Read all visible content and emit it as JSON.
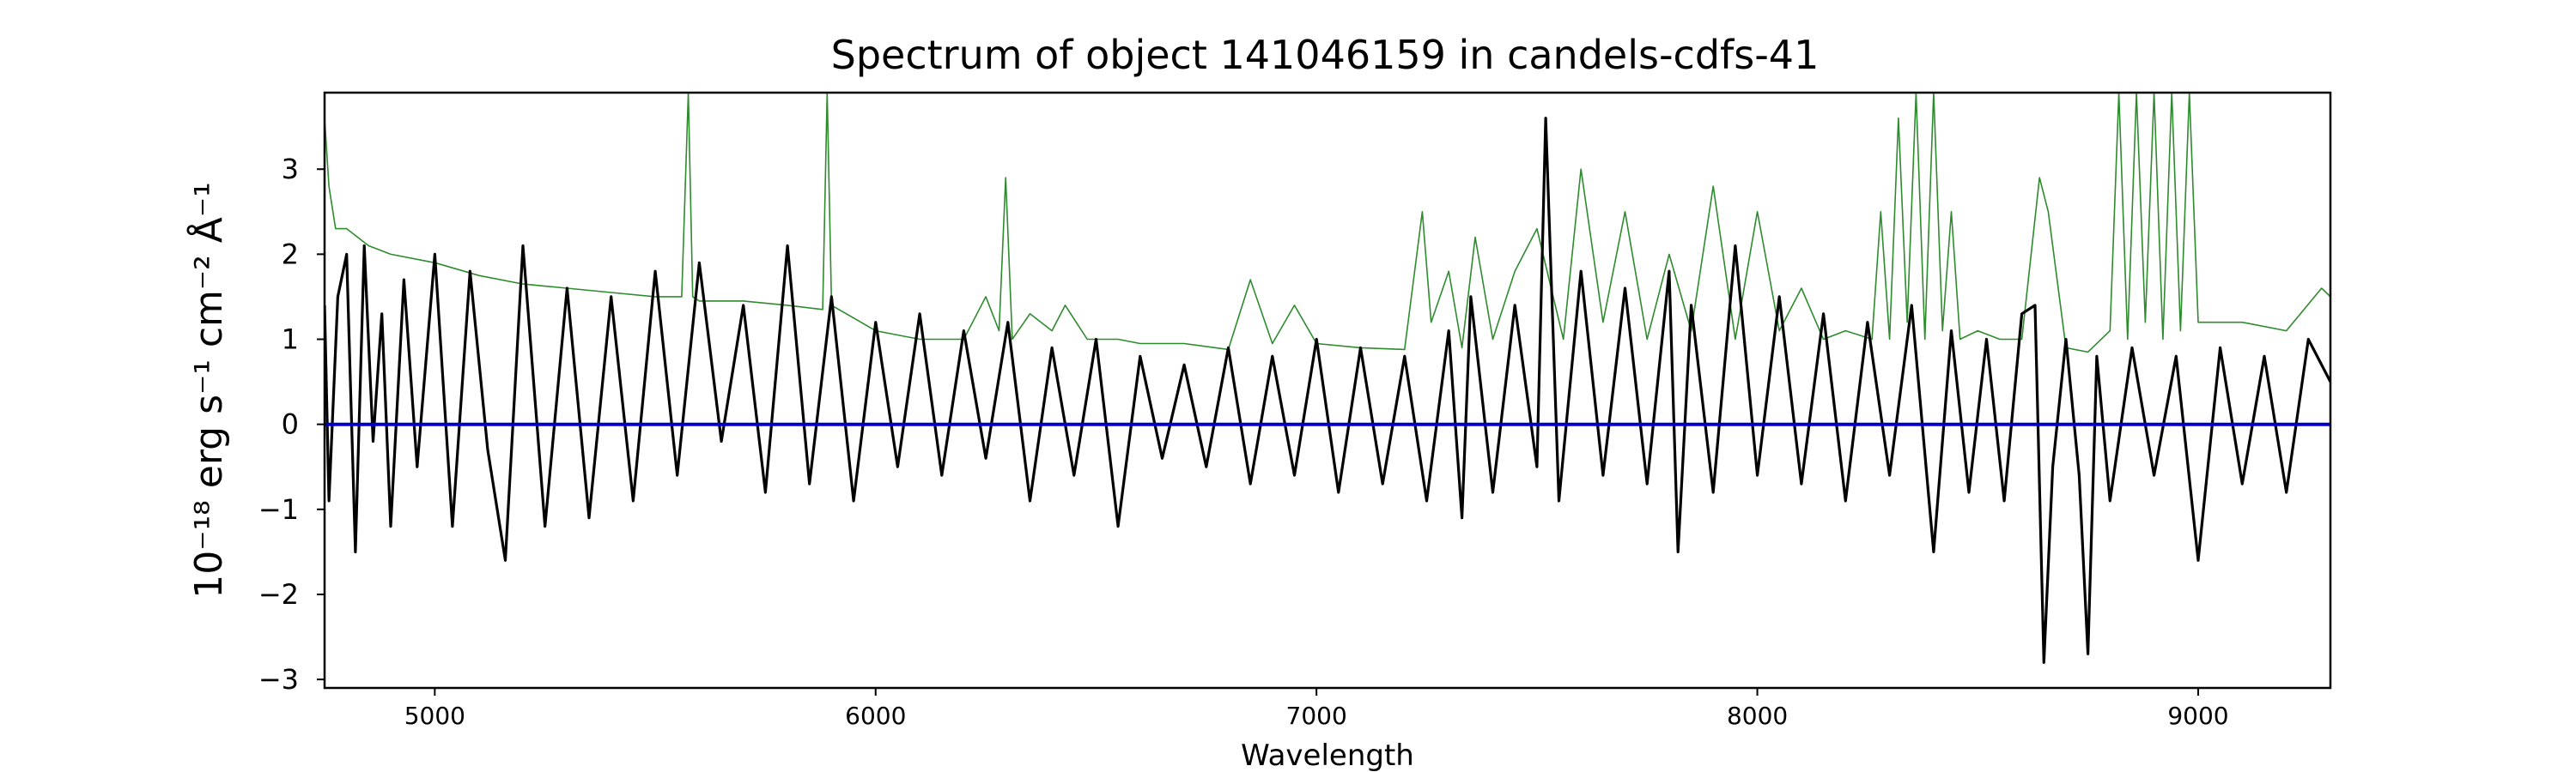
{
  "chart_data": {
    "type": "line",
    "title": "Spectrum of object 141046159 in candels-cdfs-41",
    "xlabel": "Wavelength",
    "ylabel": "10⁻¹⁸ erg s⁻¹ cm⁻² Å⁻¹",
    "xlim": [
      4750,
      9300
    ],
    "ylim": [
      -3.1,
      3.9
    ],
    "xticks": [
      5000,
      6000,
      7000,
      8000,
      9000
    ],
    "xtick_labels": [
      "5000",
      "6000",
      "7000",
      "8000",
      "9000"
    ],
    "yticks": [
      -3,
      -2,
      -1,
      0,
      1,
      2,
      3
    ],
    "ytick_labels": [
      "−3",
      "−2",
      "−1",
      "0",
      "1",
      "2",
      "3"
    ],
    "grid": false,
    "series": [
      {
        "color": "#2e8b2e",
        "x": [
          4750,
          4760,
          4775,
          4800,
          4850,
          4900,
          5000,
          5100,
          5200,
          5300,
          5400,
          5500,
          5560,
          5575,
          5585,
          5600,
          5700,
          5800,
          5880,
          5890,
          5900,
          5950,
          6000,
          6100,
          6200,
          6250,
          6280,
          6295,
          6310,
          6350,
          6400,
          6430,
          6480,
          6500,
          6550,
          6600,
          6700,
          6800,
          6850,
          6900,
          6950,
          7000,
          7100,
          7200,
          7240,
          7260,
          7300,
          7330,
          7360,
          7400,
          7450,
          7500,
          7560,
          7600,
          7650,
          7700,
          7750,
          7800,
          7850,
          7900,
          7950,
          8000,
          8050,
          8100,
          8150,
          8200,
          8260,
          8280,
          8300,
          8320,
          8340,
          8360,
          8380,
          8400,
          8420,
          8440,
          8460,
          8500,
          8550,
          8600,
          8640,
          8660,
          8700,
          8750,
          8800,
          8820,
          8840,
          8860,
          8880,
          8900,
          8920,
          8940,
          8960,
          8980,
          9000,
          9100,
          9200,
          9280,
          9300
        ],
        "values": [
          3.6,
          2.8,
          2.3,
          2.3,
          2.1,
          2.0,
          1.9,
          1.75,
          1.65,
          1.6,
          1.55,
          1.5,
          1.5,
          3.9,
          1.5,
          1.45,
          1.45,
          1.4,
          1.35,
          3.9,
          1.4,
          1.25,
          1.1,
          1.0,
          1.0,
          1.5,
          1.1,
          2.9,
          1.0,
          1.3,
          1.1,
          1.4,
          1.0,
          1.0,
          1.0,
          0.95,
          0.95,
          0.88,
          1.7,
          0.95,
          1.4,
          0.95,
          0.9,
          0.88,
          2.5,
          1.2,
          1.8,
          0.9,
          2.2,
          1.0,
          1.8,
          2.3,
          1.0,
          3.0,
          1.2,
          2.5,
          1.0,
          2.0,
          1.1,
          2.8,
          1.0,
          2.5,
          1.1,
          1.6,
          1.0,
          1.1,
          1.0,
          2.5,
          1.0,
          3.6,
          1.2,
          3.9,
          1.0,
          3.9,
          1.1,
          2.5,
          1.0,
          1.1,
          1.0,
          1.0,
          2.9,
          2.5,
          0.9,
          0.85,
          1.1,
          3.9,
          1.0,
          3.9,
          1.2,
          3.9,
          1.0,
          3.9,
          1.1,
          3.9,
          1.2,
          1.2,
          1.1,
          1.6,
          1.5
        ]
      },
      {
        "color": "#000000",
        "x": [
          4750,
          4760,
          4780,
          4800,
          4820,
          4840,
          4860,
          4880,
          4900,
          4930,
          4960,
          5000,
          5040,
          5080,
          5120,
          5160,
          5200,
          5250,
          5300,
          5350,
          5400,
          5450,
          5500,
          5550,
          5600,
          5650,
          5700,
          5750,
          5800,
          5850,
          5900,
          5950,
          6000,
          6050,
          6100,
          6150,
          6200,
          6250,
          6300,
          6350,
          6400,
          6450,
          6500,
          6550,
          6600,
          6650,
          6700,
          6750,
          6800,
          6850,
          6900,
          6950,
          7000,
          7050,
          7100,
          7150,
          7200,
          7250,
          7300,
          7330,
          7350,
          7400,
          7450,
          7500,
          7520,
          7550,
          7600,
          7650,
          7700,
          7750,
          7800,
          7820,
          7850,
          7900,
          7950,
          8000,
          8050,
          8100,
          8150,
          8200,
          8250,
          8300,
          8350,
          8400,
          8440,
          8480,
          8520,
          8560,
          8600,
          8630,
          8650,
          8670,
          8700,
          8730,
          8750,
          8770,
          8800,
          8850,
          8900,
          8950,
          9000,
          9050,
          9100,
          9150,
          9200,
          9250,
          9300
        ],
        "values": [
          1.4,
          -0.9,
          1.5,
          2.0,
          -1.5,
          2.1,
          -0.2,
          1.3,
          -1.2,
          1.7,
          -0.5,
          2.0,
          -1.2,
          1.8,
          -0.3,
          -1.6,
          2.1,
          -1.2,
          1.6,
          -1.1,
          1.5,
          -0.9,
          1.8,
          -0.6,
          1.9,
          -0.2,
          1.4,
          -0.8,
          2.1,
          -0.7,
          1.5,
          -0.9,
          1.2,
          -0.5,
          1.3,
          -0.6,
          1.1,
          -0.4,
          1.2,
          -0.9,
          0.9,
          -0.6,
          1.0,
          -1.2,
          0.8,
          -0.4,
          0.7,
          -0.5,
          0.9,
          -0.7,
          0.8,
          -0.6,
          1.0,
          -0.8,
          0.9,
          -0.7,
          0.8,
          -0.9,
          1.1,
          -1.1,
          1.5,
          -0.8,
          1.4,
          -0.5,
          3.6,
          -0.9,
          1.8,
          -0.6,
          1.6,
          -0.7,
          1.8,
          -1.5,
          1.4,
          -0.8,
          2.1,
          -0.6,
          1.5,
          -0.7,
          1.3,
          -0.9,
          1.2,
          -0.6,
          1.4,
          -1.5,
          1.1,
          -0.8,
          1.0,
          -0.9,
          1.3,
          1.4,
          -2.8,
          -0.5,
          1.0,
          -0.6,
          -2.7,
          0.8,
          -0.9,
          0.9,
          -0.6,
          0.8,
          -1.6,
          0.9,
          -0.7,
          0.8,
          -0.8,
          1.0,
          0.5
        ]
      },
      {
        "color": "#0000cc",
        "x": [
          4750,
          9300
        ],
        "values": [
          0,
          0
        ]
      }
    ]
  }
}
